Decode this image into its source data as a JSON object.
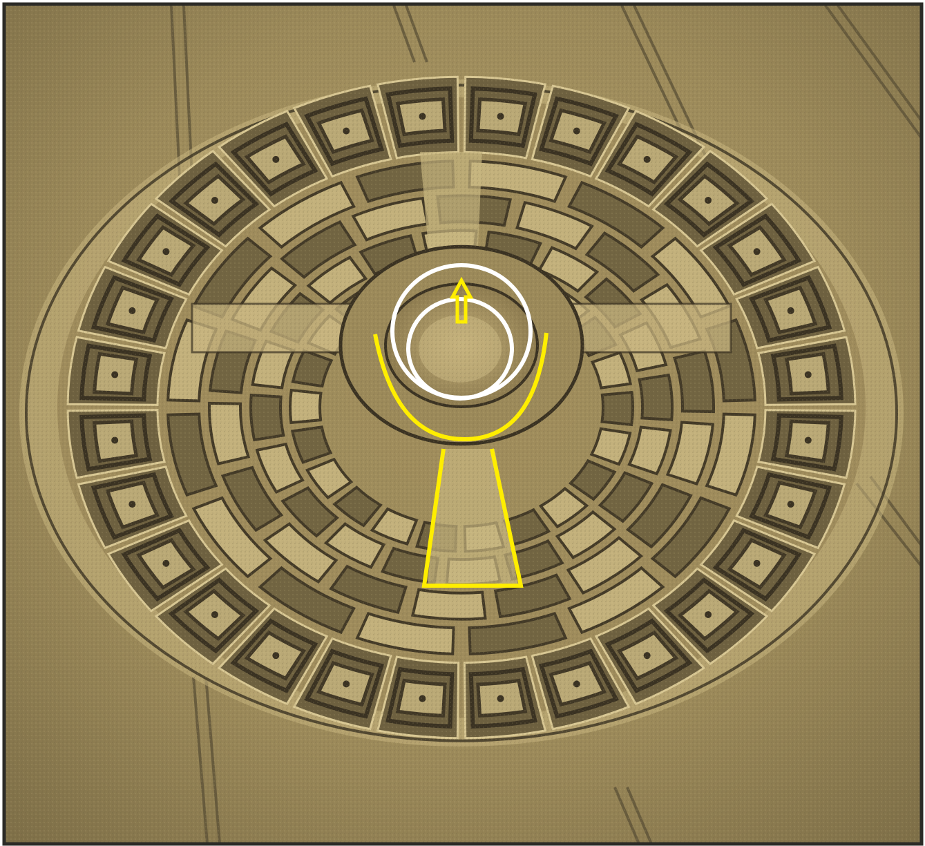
{
  "image": {
    "subject": "crop-circle-aerial-photo",
    "colors": {
      "frame": "#2b2a26",
      "field": "#9c8a5a",
      "field_dark": "#6e6140",
      "field_light": "#c8b680",
      "groove": "#3a3222",
      "ridge": "#d9c894",
      "annotation_yellow": "#ffee00",
      "annotation_white": "#ffffff"
    }
  },
  "annotations": {
    "items": [
      {
        "kind": "outer-white-circle",
        "color": "white"
      },
      {
        "kind": "inner-white-circle",
        "color": "white"
      },
      {
        "kind": "up-arrow",
        "color": "yellow"
      },
      {
        "kind": "u-curve",
        "color": "yellow"
      },
      {
        "kind": "trapezoid",
        "color": "yellow"
      }
    ]
  }
}
